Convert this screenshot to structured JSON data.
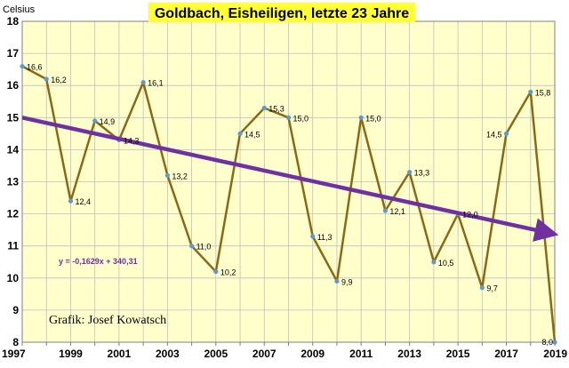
{
  "colors": {
    "plot_background": "#FFFFCC",
    "title_background": "#FFFF33",
    "line": "#8B6914",
    "marker": "#5B9BD5",
    "trend": "#7030A0",
    "grid": "#BFBFBF"
  },
  "chart_data": {
    "type": "line",
    "title": "Goldbach, Eisheiligen, letzte 23 Jahre",
    "ylabel": "Celsius",
    "xlabel": "",
    "x": [
      1997,
      1998,
      1999,
      2000,
      2001,
      2002,
      2003,
      2004,
      2005,
      2006,
      2007,
      2008,
      2009,
      2010,
      2011,
      2012,
      2013,
      2014,
      2015,
      2016,
      2017,
      2018,
      2019
    ],
    "values": [
      16.6,
      16.2,
      12.4,
      14.9,
      14.3,
      16.1,
      13.2,
      11.0,
      10.2,
      14.5,
      15.3,
      15.0,
      11.3,
      9.9,
      15.0,
      12.1,
      13.3,
      10.5,
      12.0,
      9.7,
      14.5,
      15.8,
      8.0
    ],
    "data_labels": [
      "16,6",
      "16,2",
      "12,4",
      "14,9",
      "14,3",
      "16,1",
      "13,2",
      "11,0",
      "10,2",
      "14,5",
      "15,3",
      "15,0",
      "11,3",
      "9,9",
      "15,0",
      "12,1",
      "13,3",
      "10,5",
      "12,0",
      "9,7",
      "14,5",
      "15,8",
      "8,0"
    ],
    "xticks": [
      "1997",
      "1999",
      "2001",
      "2003",
      "2005",
      "2007",
      "2009",
      "2011",
      "2013",
      "2015",
      "2017",
      "2019"
    ],
    "yticks": [
      "8",
      "9",
      "10",
      "11",
      "12",
      "13",
      "14",
      "15",
      "16",
      "17",
      "18"
    ],
    "xlim": [
      1997,
      2019
    ],
    "ylim": [
      8,
      18
    ],
    "grid": true,
    "trendline": {
      "slope": -0.1629,
      "intercept": 340.31,
      "label": "y = -0,1629x + 340,31"
    },
    "credit": "Grafik: Josef Kowatsch"
  }
}
